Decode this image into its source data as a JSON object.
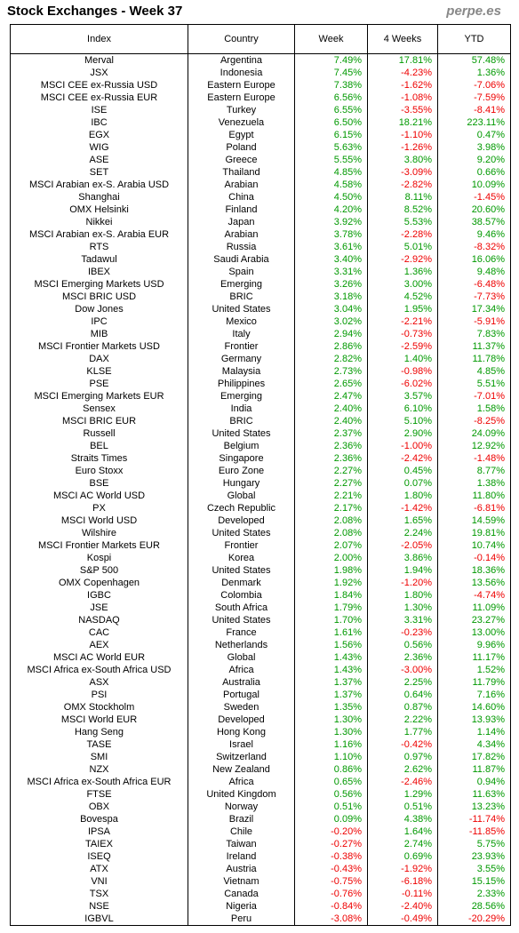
{
  "title": "Stock Exchanges - Week 37",
  "brand": "perpe.es",
  "colors": {
    "positive": "#009900",
    "negative": "#ee0000"
  },
  "headers": [
    "Index",
    "Country",
    "Week",
    "4 Weeks",
    "YTD"
  ],
  "rows": [
    [
      "Merval",
      "Argentina",
      "7.49%",
      "17.81%",
      "57.48%"
    ],
    [
      "JSX",
      "Indonesia",
      "7.45%",
      "-4.23%",
      "1.36%"
    ],
    [
      "MSCI CEE ex-Russia USD",
      "Eastern Europe",
      "7.38%",
      "-1.62%",
      "-7.06%"
    ],
    [
      "MSCI CEE ex-Russia EUR",
      "Eastern Europe",
      "6.56%",
      "-1.08%",
      "-7.59%"
    ],
    [
      "ISE",
      "Turkey",
      "6.55%",
      "-3.55%",
      "-8.41%"
    ],
    [
      "IBC",
      "Venezuela",
      "6.50%",
      "18.21%",
      "223.11%"
    ],
    [
      "EGX",
      "Egypt",
      "6.15%",
      "-1.10%",
      "0.47%"
    ],
    [
      "WIG",
      "Poland",
      "5.63%",
      "-1.26%",
      "3.98%"
    ],
    [
      "ASE",
      "Greece",
      "5.55%",
      "3.80%",
      "9.20%"
    ],
    [
      "SET",
      "Thailand",
      "4.85%",
      "-3.09%",
      "0.66%"
    ],
    [
      "MSCI Arabian ex-S. Arabia USD",
      "Arabian",
      "4.58%",
      "-2.82%",
      "10.09%"
    ],
    [
      "Shanghai",
      "China",
      "4.50%",
      "8.11%",
      "-1.45%"
    ],
    [
      "OMX Helsinki",
      "Finland",
      "4.20%",
      "8.52%",
      "20.60%"
    ],
    [
      "Nikkei",
      "Japan",
      "3.92%",
      "5.53%",
      "38.57%"
    ],
    [
      "MSCI Arabian ex-S. Arabia EUR",
      "Arabian",
      "3.78%",
      "-2.28%",
      "9.46%"
    ],
    [
      "RTS",
      "Russia",
      "3.61%",
      "5.01%",
      "-8.32%"
    ],
    [
      "Tadawul",
      "Saudi Arabia",
      "3.40%",
      "-2.92%",
      "16.06%"
    ],
    [
      "IBEX",
      "Spain",
      "3.31%",
      "1.36%",
      "9.48%"
    ],
    [
      "MSCI Emerging Markets USD",
      "Emerging",
      "3.26%",
      "3.00%",
      "-6.48%"
    ],
    [
      "MSCI BRIC USD",
      "BRIC",
      "3.18%",
      "4.52%",
      "-7.73%"
    ],
    [
      "Dow Jones",
      "United States",
      "3.04%",
      "1.95%",
      "17.34%"
    ],
    [
      "IPC",
      "Mexico",
      "3.02%",
      "-2.21%",
      "-5.91%"
    ],
    [
      "MIB",
      "Italy",
      "2.94%",
      "-0.73%",
      "7.83%"
    ],
    [
      "MSCI Frontier Markets USD",
      "Frontier",
      "2.86%",
      "-2.59%",
      "11.37%"
    ],
    [
      "DAX",
      "Germany",
      "2.82%",
      "1.40%",
      "11.78%"
    ],
    [
      "KLSE",
      "Malaysia",
      "2.73%",
      "-0.98%",
      "4.85%"
    ],
    [
      "PSE",
      "Philippines",
      "2.65%",
      "-6.02%",
      "5.51%"
    ],
    [
      "MSCI Emerging Markets EUR",
      "Emerging",
      "2.47%",
      "3.57%",
      "-7.01%"
    ],
    [
      "Sensex",
      "India",
      "2.40%",
      "6.10%",
      "1.58%"
    ],
    [
      "MSCI BRIC EUR",
      "BRIC",
      "2.40%",
      "5.10%",
      "-8.25%"
    ],
    [
      "Russell",
      "United States",
      "2.37%",
      "2.90%",
      "24.09%"
    ],
    [
      "BEL",
      "Belgium",
      "2.36%",
      "-1.00%",
      "12.92%"
    ],
    [
      "Straits Times",
      "Singapore",
      "2.36%",
      "-2.42%",
      "-1.48%"
    ],
    [
      "Euro Stoxx",
      "Euro Zone",
      "2.27%",
      "0.45%",
      "8.77%"
    ],
    [
      "BSE",
      "Hungary",
      "2.27%",
      "0.07%",
      "1.38%"
    ],
    [
      "MSCI AC World USD",
      "Global",
      "2.21%",
      "1.80%",
      "11.80%"
    ],
    [
      "PX",
      "Czech Republic",
      "2.17%",
      "-1.42%",
      "-6.81%"
    ],
    [
      "MSCI World USD",
      "Developed",
      "2.08%",
      "1.65%",
      "14.59%"
    ],
    [
      "Wilshire",
      "United States",
      "2.08%",
      "2.24%",
      "19.81%"
    ],
    [
      "MSCI Frontier Markets EUR",
      "Frontier",
      "2.07%",
      "-2.05%",
      "10.74%"
    ],
    [
      "Kospi",
      "Korea",
      "2.00%",
      "3.86%",
      "-0.14%"
    ],
    [
      "S&P 500",
      "United States",
      "1.98%",
      "1.94%",
      "18.36%"
    ],
    [
      "OMX Copenhagen",
      "Denmark",
      "1.92%",
      "-1.20%",
      "13.56%"
    ],
    [
      "IGBC",
      "Colombia",
      "1.84%",
      "1.80%",
      "-4.74%"
    ],
    [
      "JSE",
      "South Africa",
      "1.79%",
      "1.30%",
      "11.09%"
    ],
    [
      "NASDAQ",
      "United States",
      "1.70%",
      "3.31%",
      "23.27%"
    ],
    [
      "CAC",
      "France",
      "1.61%",
      "-0.23%",
      "13.00%"
    ],
    [
      "AEX",
      "Netherlands",
      "1.56%",
      "0.56%",
      "9.96%"
    ],
    [
      "MSCI AC World EUR",
      "Global",
      "1.43%",
      "2.36%",
      "11.17%"
    ],
    [
      "MSCI Africa ex-South Africa USD",
      "Africa",
      "1.43%",
      "-3.00%",
      "1.52%"
    ],
    [
      "ASX",
      "Australia",
      "1.37%",
      "2.25%",
      "11.79%"
    ],
    [
      "PSI",
      "Portugal",
      "1.37%",
      "0.64%",
      "7.16%"
    ],
    [
      "OMX Stockholm",
      "Sweden",
      "1.35%",
      "0.87%",
      "14.60%"
    ],
    [
      "MSCI World EUR",
      "Developed",
      "1.30%",
      "2.22%",
      "13.93%"
    ],
    [
      "Hang Seng",
      "Hong Kong",
      "1.30%",
      "1.77%",
      "1.14%"
    ],
    [
      "TASE",
      "Israel",
      "1.16%",
      "-0.42%",
      "4.34%"
    ],
    [
      "SMI",
      "Switzerland",
      "1.10%",
      "0.97%",
      "17.82%"
    ],
    [
      "NZX",
      "New Zealand",
      "0.86%",
      "2.62%",
      "11.87%"
    ],
    [
      "MSCI Africa ex-South Africa EUR",
      "Africa",
      "0.65%",
      "-2.46%",
      "0.94%"
    ],
    [
      "FTSE",
      "United Kingdom",
      "0.56%",
      "1.29%",
      "11.63%"
    ],
    [
      "OBX",
      "Norway",
      "0.51%",
      "0.51%",
      "13.23%"
    ],
    [
      "Bovespa",
      "Brazil",
      "0.09%",
      "4.38%",
      "-11.74%"
    ],
    [
      "IPSA",
      "Chile",
      "-0.20%",
      "1.64%",
      "-11.85%"
    ],
    [
      "TAIEX",
      "Taiwan",
      "-0.27%",
      "2.74%",
      "5.75%"
    ],
    [
      "ISEQ",
      "Ireland",
      "-0.38%",
      "0.69%",
      "23.93%"
    ],
    [
      "ATX",
      "Austria",
      "-0.43%",
      "-1.92%",
      "3.55%"
    ],
    [
      "VNI",
      "Vietnam",
      "-0.75%",
      "-6.18%",
      "15.15%"
    ],
    [
      "TSX",
      "Canada",
      "-0.76%",
      "-0.11%",
      "2.33%"
    ],
    [
      "NSE",
      "Nigeria",
      "-0.84%",
      "-2.40%",
      "28.56%"
    ],
    [
      "IGBVL",
      "Peru",
      "-3.08%",
      "-0.49%",
      "-20.29%"
    ]
  ]
}
